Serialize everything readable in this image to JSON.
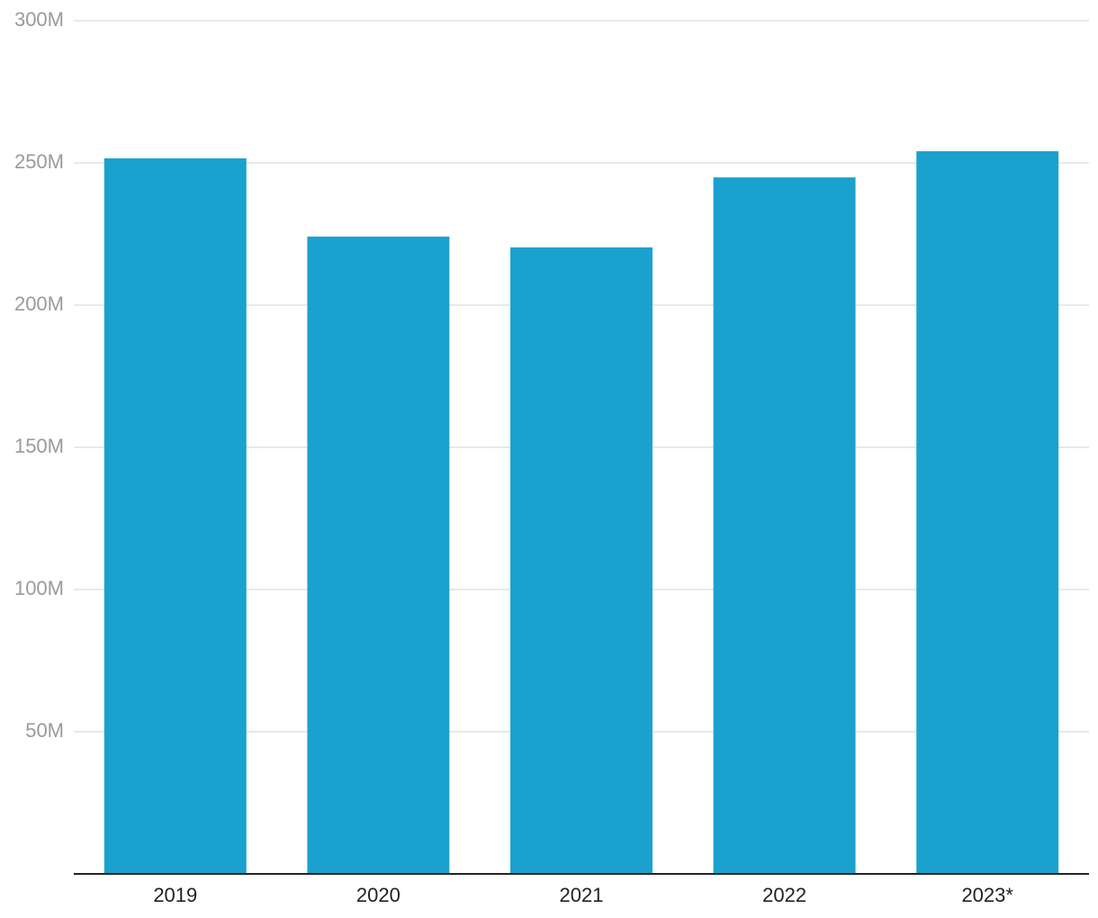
{
  "chart_data": {
    "type": "bar",
    "categories": [
      "2019",
      "2020",
      "2021",
      "2022",
      "2023*"
    ],
    "values": [
      251600000,
      224100000,
      220300000,
      244900000,
      254100000
    ],
    "color": "#1aa1ce",
    "ylim": [
      0,
      300000000
    ],
    "yticks": [
      {
        "value": 50000000,
        "label": "50M"
      },
      {
        "value": 100000000,
        "label": "100M"
      },
      {
        "value": 150000000,
        "label": "150M"
      },
      {
        "value": 200000000,
        "label": "200M"
      },
      {
        "value": 250000000,
        "label": "250M"
      },
      {
        "value": 300000000,
        "label": "300M"
      }
    ],
    "grid": true
  }
}
